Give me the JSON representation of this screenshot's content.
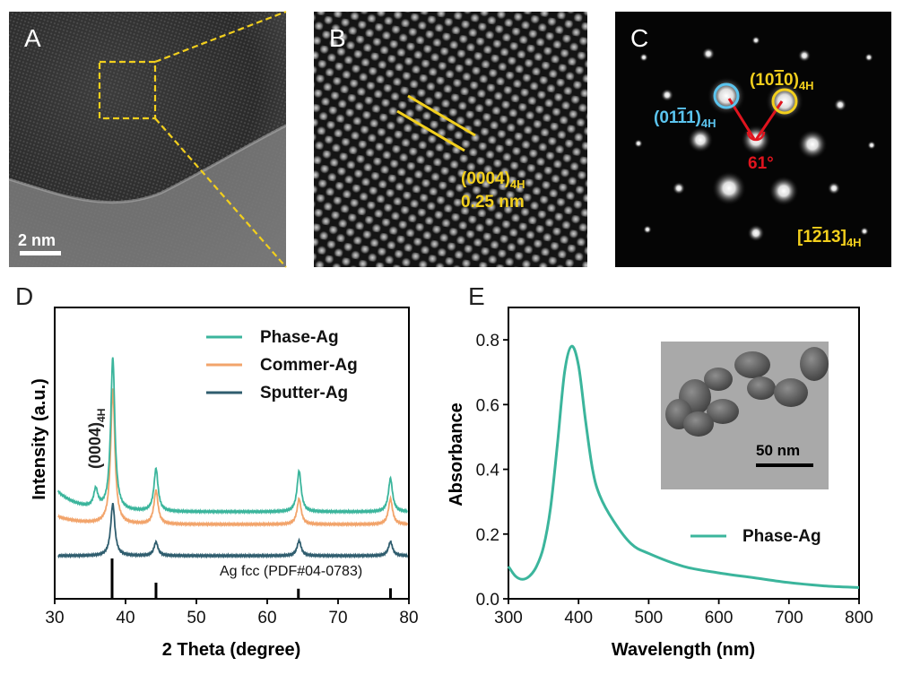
{
  "panels": {
    "a": {
      "letter": "A",
      "scale_bar": "2 nm"
    },
    "b": {
      "letter": "B",
      "annotation_line1_main": "(0004)",
      "annotation_line1_sub": "4H",
      "annotation_line2": "0.25 nm"
    },
    "c": {
      "letter": "C",
      "label_right_main": "(10",
      "label_right_bar": "1",
      "label_right_end": "0)",
      "label_right_sub": "4H",
      "label_left_main": "(01",
      "label_left_bar1": "1",
      "label_left_bar2": "1",
      "label_left_end": ")",
      "label_left_sub": "4H",
      "angle": "61°",
      "zone_main": "[1",
      "zone_bar": "2",
      "zone_end": "13]",
      "zone_sub": "4H"
    },
    "d": {
      "letter": "D",
      "peak_label_main": "(0004)",
      "peak_label_sub": "4H",
      "reference_label": "Ag fcc (PDF#04-0783)"
    },
    "e": {
      "letter": "E",
      "inset_scale_bar": "50 nm"
    }
  },
  "colors": {
    "phase_ag": "#3bb59c",
    "commer_ag": "#f2a46b",
    "sputter_ag": "#2f5d6e",
    "highlight_yellow": "#f2cf1d",
    "highlight_cyan": "#5bc4ee",
    "angle_red": "#e0141e"
  },
  "chart_data": [
    {
      "type": "line",
      "panel": "D",
      "xlabel": "2 Theta (degree)",
      "ylabel": "Intensity (a.u.)",
      "xlim": [
        30,
        80
      ],
      "xticks": [
        30,
        40,
        50,
        60,
        70,
        80
      ],
      "y_ticks_shown": false,
      "legend_position": "top-right",
      "series": [
        {
          "name": "Phase-Ag",
          "peaks_2theta": [
            35.8,
            38.2,
            44.3,
            64.5,
            77.4
          ],
          "peak_relative_heights": [
            0.12,
            1.0,
            0.28,
            0.27,
            0.22
          ]
        },
        {
          "name": "Commer-Ag",
          "peaks_2theta": [
            38.2,
            44.3,
            64.5,
            77.4
          ],
          "peak_relative_heights": [
            1.0,
            0.25,
            0.19,
            0.19
          ]
        },
        {
          "name": "Sputter-Ag",
          "peaks_2theta": [
            38.2,
            44.3,
            64.5,
            77.4
          ],
          "peak_relative_heights": [
            1.0,
            0.26,
            0.29,
            0.27
          ]
        }
      ],
      "reference": {
        "name": "Ag fcc (PDF#04-0783)",
        "positions_2theta": [
          38.1,
          44.3,
          64.4,
          77.4
        ],
        "relative_intensities": [
          1.0,
          0.4,
          0.25,
          0.26
        ]
      }
    },
    {
      "type": "line",
      "panel": "E",
      "xlabel": "Wavelength (nm)",
      "ylabel": "Absorbance",
      "xlim": [
        300,
        800
      ],
      "ylim": [
        0,
        0.9
      ],
      "xticks": [
        300,
        400,
        500,
        600,
        700,
        800
      ],
      "yticks": [
        "0.0",
        "0.2",
        "0.4",
        "0.6",
        "0.8"
      ],
      "legend_position": "bottom-right",
      "series": [
        {
          "name": "Phase-Ag",
          "x": [
            300,
            310,
            320,
            330,
            340,
            350,
            360,
            370,
            380,
            390,
            400,
            410,
            420,
            430,
            450,
            475,
            500,
            550,
            600,
            650,
            700,
            750,
            800
          ],
          "y": [
            0.1,
            0.07,
            0.06,
            0.07,
            0.1,
            0.16,
            0.28,
            0.48,
            0.7,
            0.78,
            0.72,
            0.55,
            0.4,
            0.32,
            0.24,
            0.17,
            0.14,
            0.1,
            0.08,
            0.065,
            0.05,
            0.04,
            0.035
          ]
        }
      ]
    }
  ]
}
